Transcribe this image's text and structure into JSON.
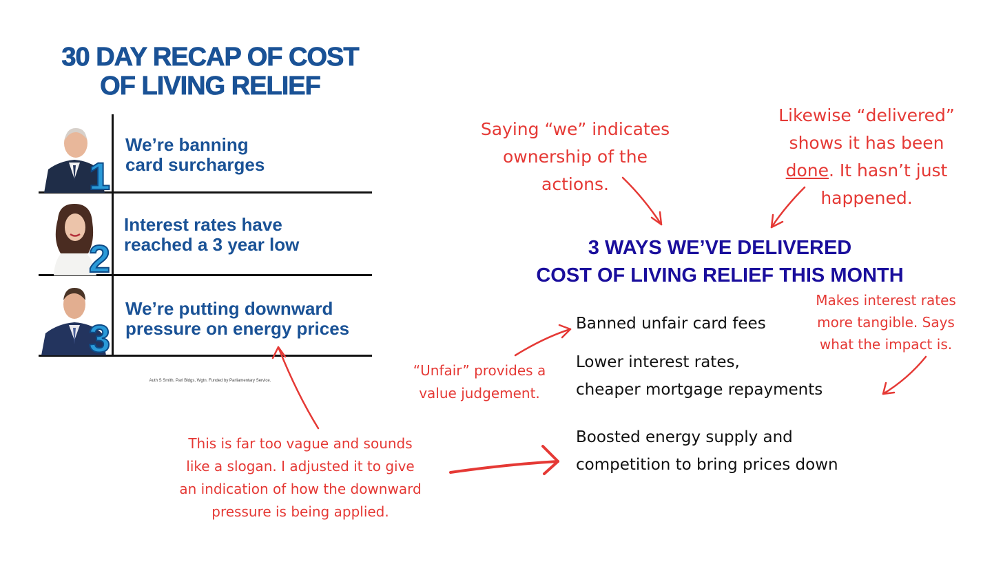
{
  "poster": {
    "title_line1": "30 DAY RECAP OF COST",
    "title_line2": "OF LIVING RELIEF",
    "rows": [
      {
        "number": "1",
        "line1": "We’re banning",
        "line2": "card surcharges"
      },
      {
        "number": "2",
        "line1": "Interest rates have",
        "line2": "reached a 3 year low"
      },
      {
        "number": "3",
        "line1": "We’re putting downward",
        "line2": "pressure on energy prices"
      }
    ],
    "footer": "Auth S Smith, Parl Bldgs, Wgtn. Funded by Parliamentary Service."
  },
  "rewrite": {
    "title_line1": "3 WAYS WE’VE DELIVERED",
    "title_line2": "COST OF LIVING RELIEF THIS MONTH",
    "items": [
      {
        "line1": "Banned unfair card fees",
        "line2": ""
      },
      {
        "line1": "Lower interest rates,",
        "line2": "cheaper mortgage repayments"
      },
      {
        "line1": "Boosted energy supply and",
        "line2": "competition to bring prices down"
      }
    ]
  },
  "annotations": {
    "we": {
      "line1": "Saying “we” indicates",
      "line2": "ownership of the",
      "line3": "actions."
    },
    "delivered": {
      "line1": "Likewise “delivered”",
      "line2": "shows it has been",
      "line3_underlined": "done",
      "line3_rest": ". It hasn’t just",
      "line4": "happened."
    },
    "interest": {
      "line1": "Makes interest rates",
      "line2": "more tangible. Says",
      "line3": "what the impact is."
    },
    "unfair": {
      "line1": "“Unfair” provides a",
      "line2": "value judgement."
    },
    "vague": {
      "line1": "This is far too vague and sounds",
      "line2": "like a slogan. I adjusted it to give",
      "line3": "an indication of how the downward",
      "line4": "pressure is being applied."
    }
  },
  "colors": {
    "poster_blue": "#1a5296",
    "number_blue": "#2a9ad8",
    "title_navy": "#1a0e9c",
    "annotation_red": "#e53935"
  }
}
